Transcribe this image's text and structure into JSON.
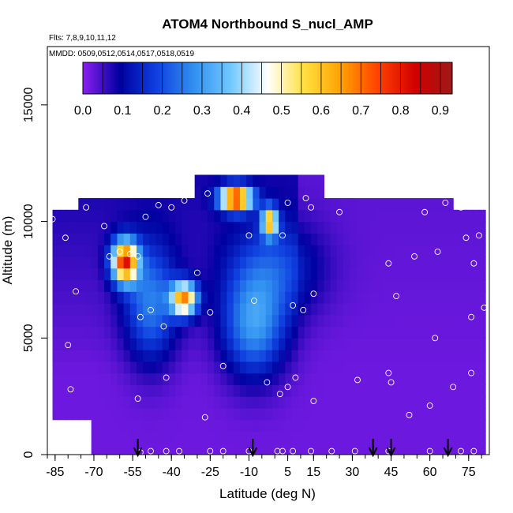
{
  "chart_data": {
    "type": "heatmap",
    "title": "ATOM4 Northbound S_nucl_AMP",
    "subtitle_flights": "Flts: 7,8,9,10,11,12",
    "subtitle_dates": "MMDD: 0509,0512,0514,0517,0518,0519",
    "xlabel": "Latitude (deg N)",
    "ylabel": "Altitude (m)",
    "xlim": [
      -88,
      83
    ],
    "ylim": [
      0,
      17500
    ],
    "x_ticks": [
      -85,
      -70,
      -55,
      -40,
      -25,
      -10,
      5,
      15,
      30,
      45,
      60,
      75
    ],
    "x_tick_labels": [
      "-85",
      "-70",
      "-55",
      "-40",
      "-25",
      "-10",
      "5",
      "15",
      "30",
      "45",
      "60",
      "75"
    ],
    "y_ticks": [
      0,
      5000,
      10000,
      15000
    ],
    "y_tick_labels": [
      "0",
      "5000",
      "10000",
      "15000"
    ],
    "colorbar": {
      "min": 0,
      "max": 0.93,
      "tick_values": [
        0.0,
        0.1,
        0.2,
        0.3,
        0.4,
        0.5,
        0.6,
        0.7,
        0.8,
        0.9
      ],
      "tick_labels": [
        "0.0",
        "0.1",
        "0.2",
        "0.3",
        "0.4",
        "0.5",
        "0.6",
        "0.7",
        "0.8",
        "0.9"
      ],
      "colors": [
        "#8a1fef",
        "#0000a0",
        "#1040e0",
        "#3090f0",
        "#70c8ff",
        "#ffffff",
        "#ffe040",
        "#ffa000",
        "#ff4000",
        "#d00000",
        "#a01818"
      ]
    },
    "profile_arrows_lat": [
      -53,
      -8.5,
      38,
      45,
      67
    ],
    "sample_points": [
      [
        -86,
        10100
      ],
      [
        -81,
        9300
      ],
      [
        -77,
        7000
      ],
      [
        -80,
        4700
      ],
      [
        -79,
        2800
      ],
      [
        -79,
        1300
      ],
      [
        -73,
        10600
      ],
      [
        -66,
        9800
      ],
      [
        -64,
        8500
      ],
      [
        -60,
        8700
      ],
      [
        -56,
        8600
      ],
      [
        -53,
        8500
      ],
      [
        -50,
        10200
      ],
      [
        -45,
        10700
      ],
      [
        -53,
        2400
      ],
      [
        -52,
        100
      ],
      [
        -48,
        150
      ],
      [
        -42,
        150
      ],
      [
        -37,
        150
      ],
      [
        -25,
        150
      ],
      [
        -20,
        150
      ],
      [
        -42,
        3300
      ],
      [
        -43,
        5500
      ],
      [
        -35,
        10900
      ],
      [
        -30,
        7800
      ],
      [
        -26,
        11200
      ],
      [
        -25,
        6100
      ],
      [
        -20,
        3800
      ],
      [
        -27,
        1600
      ],
      [
        -48,
        6200
      ],
      [
        -52,
        5900
      ],
      [
        -40,
        10600
      ],
      [
        -10,
        9400
      ],
      [
        -8,
        6600
      ],
      [
        -3,
        3100
      ],
      [
        2,
        2600
      ],
      [
        5,
        2900
      ],
      [
        8,
        3300
      ],
      [
        5,
        10800
      ],
      [
        12,
        11000
      ],
      [
        14,
        10600
      ],
      [
        25,
        10400
      ],
      [
        11,
        6200
      ],
      [
        7,
        6400
      ],
      [
        15,
        6900
      ],
      [
        3,
        9400
      ],
      [
        15,
        2300
      ],
      [
        32,
        3200
      ],
      [
        44,
        3500
      ],
      [
        45,
        3100
      ],
      [
        47,
        6800
      ],
      [
        44,
        8200
      ],
      [
        52,
        1700
      ],
      [
        54,
        8500
      ],
      [
        60,
        2100
      ],
      [
        62,
        5000
      ],
      [
        63,
        8700
      ],
      [
        58,
        10400
      ],
      [
        66,
        10800
      ],
      [
        69,
        2900
      ],
      [
        72,
        10600
      ],
      [
        74,
        9300
      ],
      [
        76,
        5900
      ],
      [
        76,
        3500
      ],
      [
        77,
        8200
      ],
      [
        79,
        9400
      ],
      [
        81,
        6300
      ],
      [
        1,
        150
      ],
      [
        3,
        150
      ],
      [
        7,
        150
      ],
      [
        14,
        150
      ],
      [
        22,
        150
      ],
      [
        31,
        150
      ],
      [
        44,
        150
      ],
      [
        60,
        150
      ],
      [
        72,
        150
      ],
      [
        77,
        150
      ],
      [
        -10,
        150
      ]
    ],
    "model_axis_ticks": [
      -88,
      -85,
      -80,
      -75,
      -70,
      -65,
      -60,
      -55,
      -50,
      -45,
      -40,
      -35,
      -30,
      -25,
      -20,
      -15,
      -10,
      -5,
      0,
      5,
      10,
      15,
      20,
      25,
      30,
      35,
      40,
      45,
      50,
      55,
      60,
      65,
      70,
      75,
      80
    ],
    "field_grid": {
      "lat_bins": [
        -85,
        -80,
        -75,
        -70,
        -65,
        -60,
        -55,
        -50,
        -45,
        -40,
        -35,
        -30,
        -25,
        -20,
        -15,
        -10,
        -5,
        0,
        5,
        10,
        15,
        20,
        25,
        30,
        35,
        40,
        45,
        50,
        55,
        60,
        65,
        70,
        75,
        80
      ],
      "alt_bins_m": [
        500,
        1500,
        2500,
        3500,
        4500,
        5500,
        6500,
        7500,
        8500,
        9500,
        10500,
        11500
      ]
    }
  }
}
